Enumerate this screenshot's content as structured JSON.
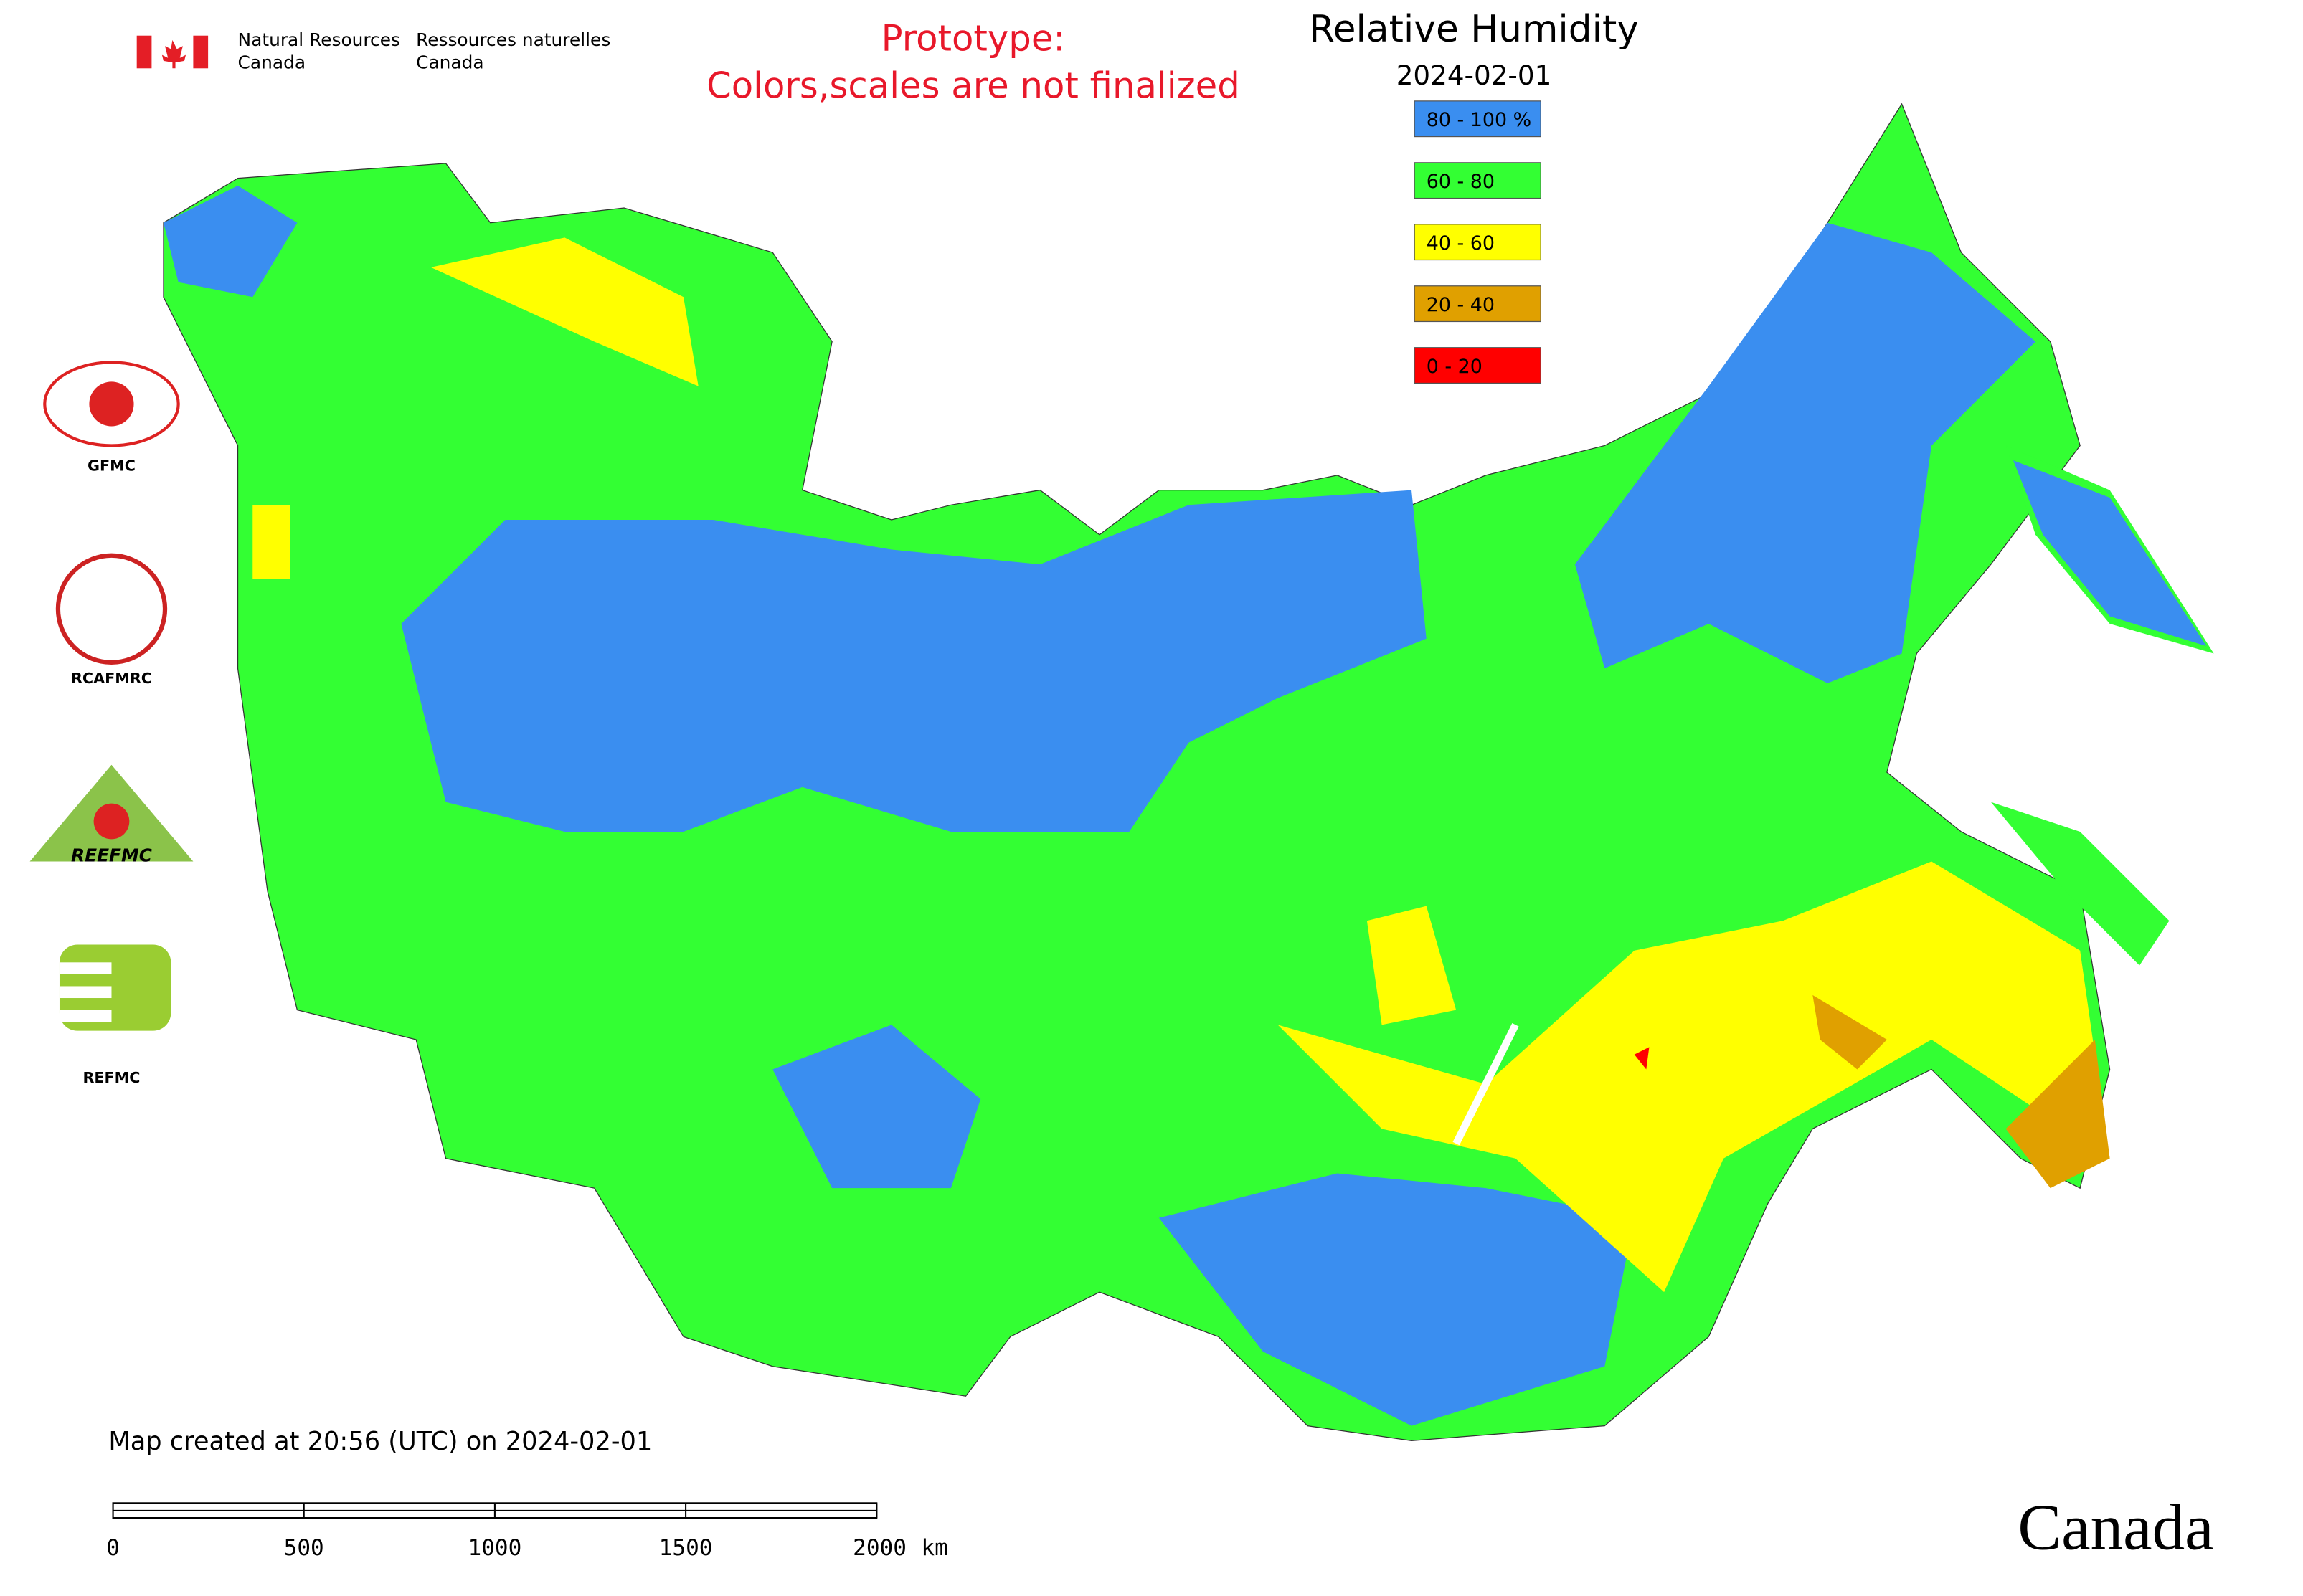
{
  "header": {
    "dept_en": [
      "Natural Resources",
      "Canada"
    ],
    "dept_fr": [
      "Ressources naturelles",
      "Canada"
    ],
    "notice": [
      "Prototype:",
      "Colors,scales are not finalized"
    ]
  },
  "legend": {
    "title": "Relative Humidity",
    "date": "2024-02-01",
    "items": [
      {
        "label": "80 - 100 %",
        "color": "#3a8ef0"
      },
      {
        "label": "60 - 80",
        "color": "#33ff33"
      },
      {
        "label": "40 - 60",
        "color": "#ffff00"
      },
      {
        "label": "20 - 40",
        "color": "#e0a000"
      },
      {
        "label": "0 - 20",
        "color": "#ff0000"
      }
    ]
  },
  "logos": [
    "GFMC",
    "RCAFMRC",
    "REEFMC",
    "REFMC"
  ],
  "footer": {
    "created": "Map created at 20:56 (UTC) on 2024-02-01",
    "wordmark": "Canada"
  },
  "scale_bar": {
    "ticks": [
      0,
      500,
      1000,
      1500,
      2000
    ],
    "unit": "km"
  }
}
